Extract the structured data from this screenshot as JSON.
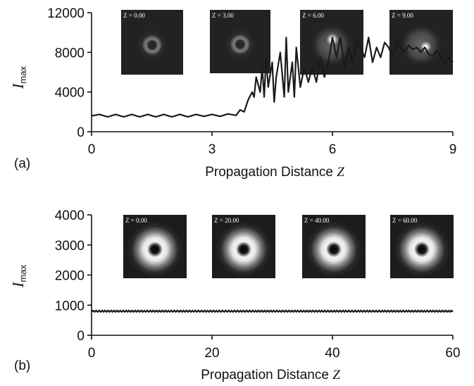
{
  "chart_data": [
    {
      "panel_label": "(a)",
      "type": "line",
      "xlabel": "Propagation Distance ",
      "xlabel_var": "Z",
      "ylabel": "I",
      "ylabel_sub": "max",
      "xlim": [
        0,
        9
      ],
      "ylim": [
        0,
        12000
      ],
      "xticks": [
        "0",
        "3",
        "6",
        "9"
      ],
      "xtick_values": [
        0,
        3,
        6,
        9
      ],
      "yticks": [
        "0",
        "4000",
        "8000",
        "12000"
      ],
      "ytick_values": [
        0,
        4000,
        8000,
        12000
      ],
      "series": [
        {
          "x": [
            0,
            0.2,
            0.4,
            0.6,
            0.8,
            1.0,
            1.2,
            1.4,
            1.6,
            1.8,
            2.0,
            2.2,
            2.4,
            2.6,
            2.8,
            3.0,
            3.2,
            3.4,
            3.6,
            3.7,
            3.8,
            3.9,
            4.0,
            4.05,
            4.1,
            4.2,
            4.25,
            4.3,
            4.35,
            4.4,
            4.5,
            4.55,
            4.6,
            4.7,
            4.8,
            4.85,
            4.9,
            5.0,
            5.05,
            5.1,
            5.2,
            5.3,
            5.4,
            5.5,
            5.6,
            5.7,
            5.8,
            5.9,
            6.0,
            6.1,
            6.2,
            6.3,
            6.4,
            6.5,
            6.6,
            6.7,
            6.8,
            6.9,
            7.0,
            7.1,
            7.2,
            7.3,
            7.4,
            7.5,
            7.6,
            7.7,
            7.8,
            7.9,
            8.0,
            8.1,
            8.2,
            8.3,
            8.4,
            8.5,
            8.6,
            8.7,
            8.8,
            8.9,
            9.0
          ],
          "y": [
            1600,
            1750,
            1500,
            1750,
            1500,
            1750,
            1500,
            1750,
            1500,
            1750,
            1500,
            1750,
            1500,
            1750,
            1550,
            1750,
            1550,
            1800,
            1650,
            2200,
            2000,
            3200,
            4000,
            3500,
            5500,
            4000,
            6500,
            3500,
            7500,
            4500,
            7000,
            3000,
            5500,
            8000,
            3500,
            9500,
            4000,
            7000,
            3500,
            8500,
            4500,
            6500,
            5000,
            6500,
            5000,
            7500,
            5500,
            7000,
            9500,
            7500,
            9500,
            6500,
            8500,
            7000,
            9000,
            8500,
            7500,
            9500,
            7000,
            8500,
            7500,
            9000,
            8500,
            7500,
            9000,
            8500,
            8000,
            8700,
            8300,
            8500,
            8000,
            8500,
            7800,
            7600,
            8200,
            7500,
            6800,
            7500,
            7000
          ]
        }
      ],
      "insets": [
        {
          "label": "Z = 0.00",
          "kind": "faint-ring"
        },
        {
          "label": "Z = 3.00",
          "kind": "faint-ring"
        },
        {
          "label": "Z = 6.00",
          "kind": "spot"
        },
        {
          "label": "Z = 9.00",
          "kind": "spot"
        }
      ]
    },
    {
      "panel_label": "(b)",
      "type": "line",
      "xlabel": "Propagation Distance ",
      "xlabel_var": "Z",
      "ylabel": "I",
      "ylabel_sub": "max",
      "xlim": [
        0,
        60
      ],
      "ylim": [
        0,
        4000
      ],
      "xticks": [
        "0",
        "20",
        "40",
        "60"
      ],
      "xtick_values": [
        0,
        20,
        40,
        60
      ],
      "yticks": [
        "0",
        "1000",
        "2000",
        "3000",
        "4000"
      ],
      "ytick_values": [
        0,
        1000,
        2000,
        3000,
        4000
      ],
      "series": [
        {
          "x_start": 0,
          "x_end": 60,
          "mean": 800,
          "amplitude": 25,
          "oscillations": 120
        }
      ],
      "insets": [
        {
          "label": "Z = 0.00",
          "kind": "bright-ring"
        },
        {
          "label": "Z = 20.00",
          "kind": "bright-ring"
        },
        {
          "label": "Z = 40.00",
          "kind": "bright-ring"
        },
        {
          "label": "Z = 60.00",
          "kind": "bright-ring"
        }
      ]
    }
  ]
}
